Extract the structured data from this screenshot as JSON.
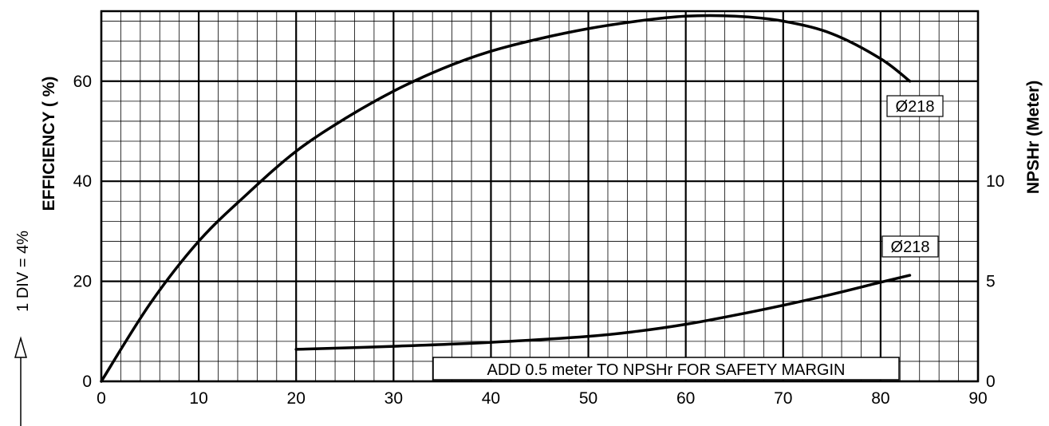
{
  "chart_data": {
    "type": "line",
    "xlim": [
      0,
      90
    ],
    "ylim": [
      0,
      74
    ],
    "y2lim": [
      0,
      18.5
    ],
    "grid": true,
    "x_ticks": [
      "0",
      "10",
      "20",
      "30",
      "40",
      "50",
      "60",
      "70",
      "80",
      "90"
    ],
    "y_ticks": [
      "0",
      "20",
      "40",
      "60"
    ],
    "y2_ticks": [
      "0",
      "5",
      "10"
    ],
    "ylabel": "EFFICIENCY ( %)",
    "y2label": "NPSHr (Meter)",
    "y_division_note": "1 DIV = 4%",
    "note": "ADD 0.5 meter TO NPSHr FOR SAFETY MARGIN",
    "series": [
      {
        "name": "Ø218",
        "axis": "left",
        "x": [
          0,
          5,
          10,
          15,
          20,
          25,
          30,
          35,
          40,
          45,
          50,
          55,
          60,
          65,
          70,
          75,
          80,
          83
        ],
        "y": [
          0,
          15.5,
          28,
          37.5,
          46,
          52.5,
          58,
          62.5,
          66,
          68.5,
          70.5,
          72,
          73,
          73,
          72,
          69.5,
          64.5,
          60
        ]
      },
      {
        "name": "Ø218",
        "axis": "right",
        "x": [
          20,
          30,
          40,
          50,
          55,
          60,
          65,
          70,
          75,
          80,
          83
        ],
        "y": [
          1.6,
          1.75,
          1.95,
          2.25,
          2.5,
          2.85,
          3.3,
          3.8,
          4.35,
          4.95,
          5.3
        ]
      }
    ]
  }
}
